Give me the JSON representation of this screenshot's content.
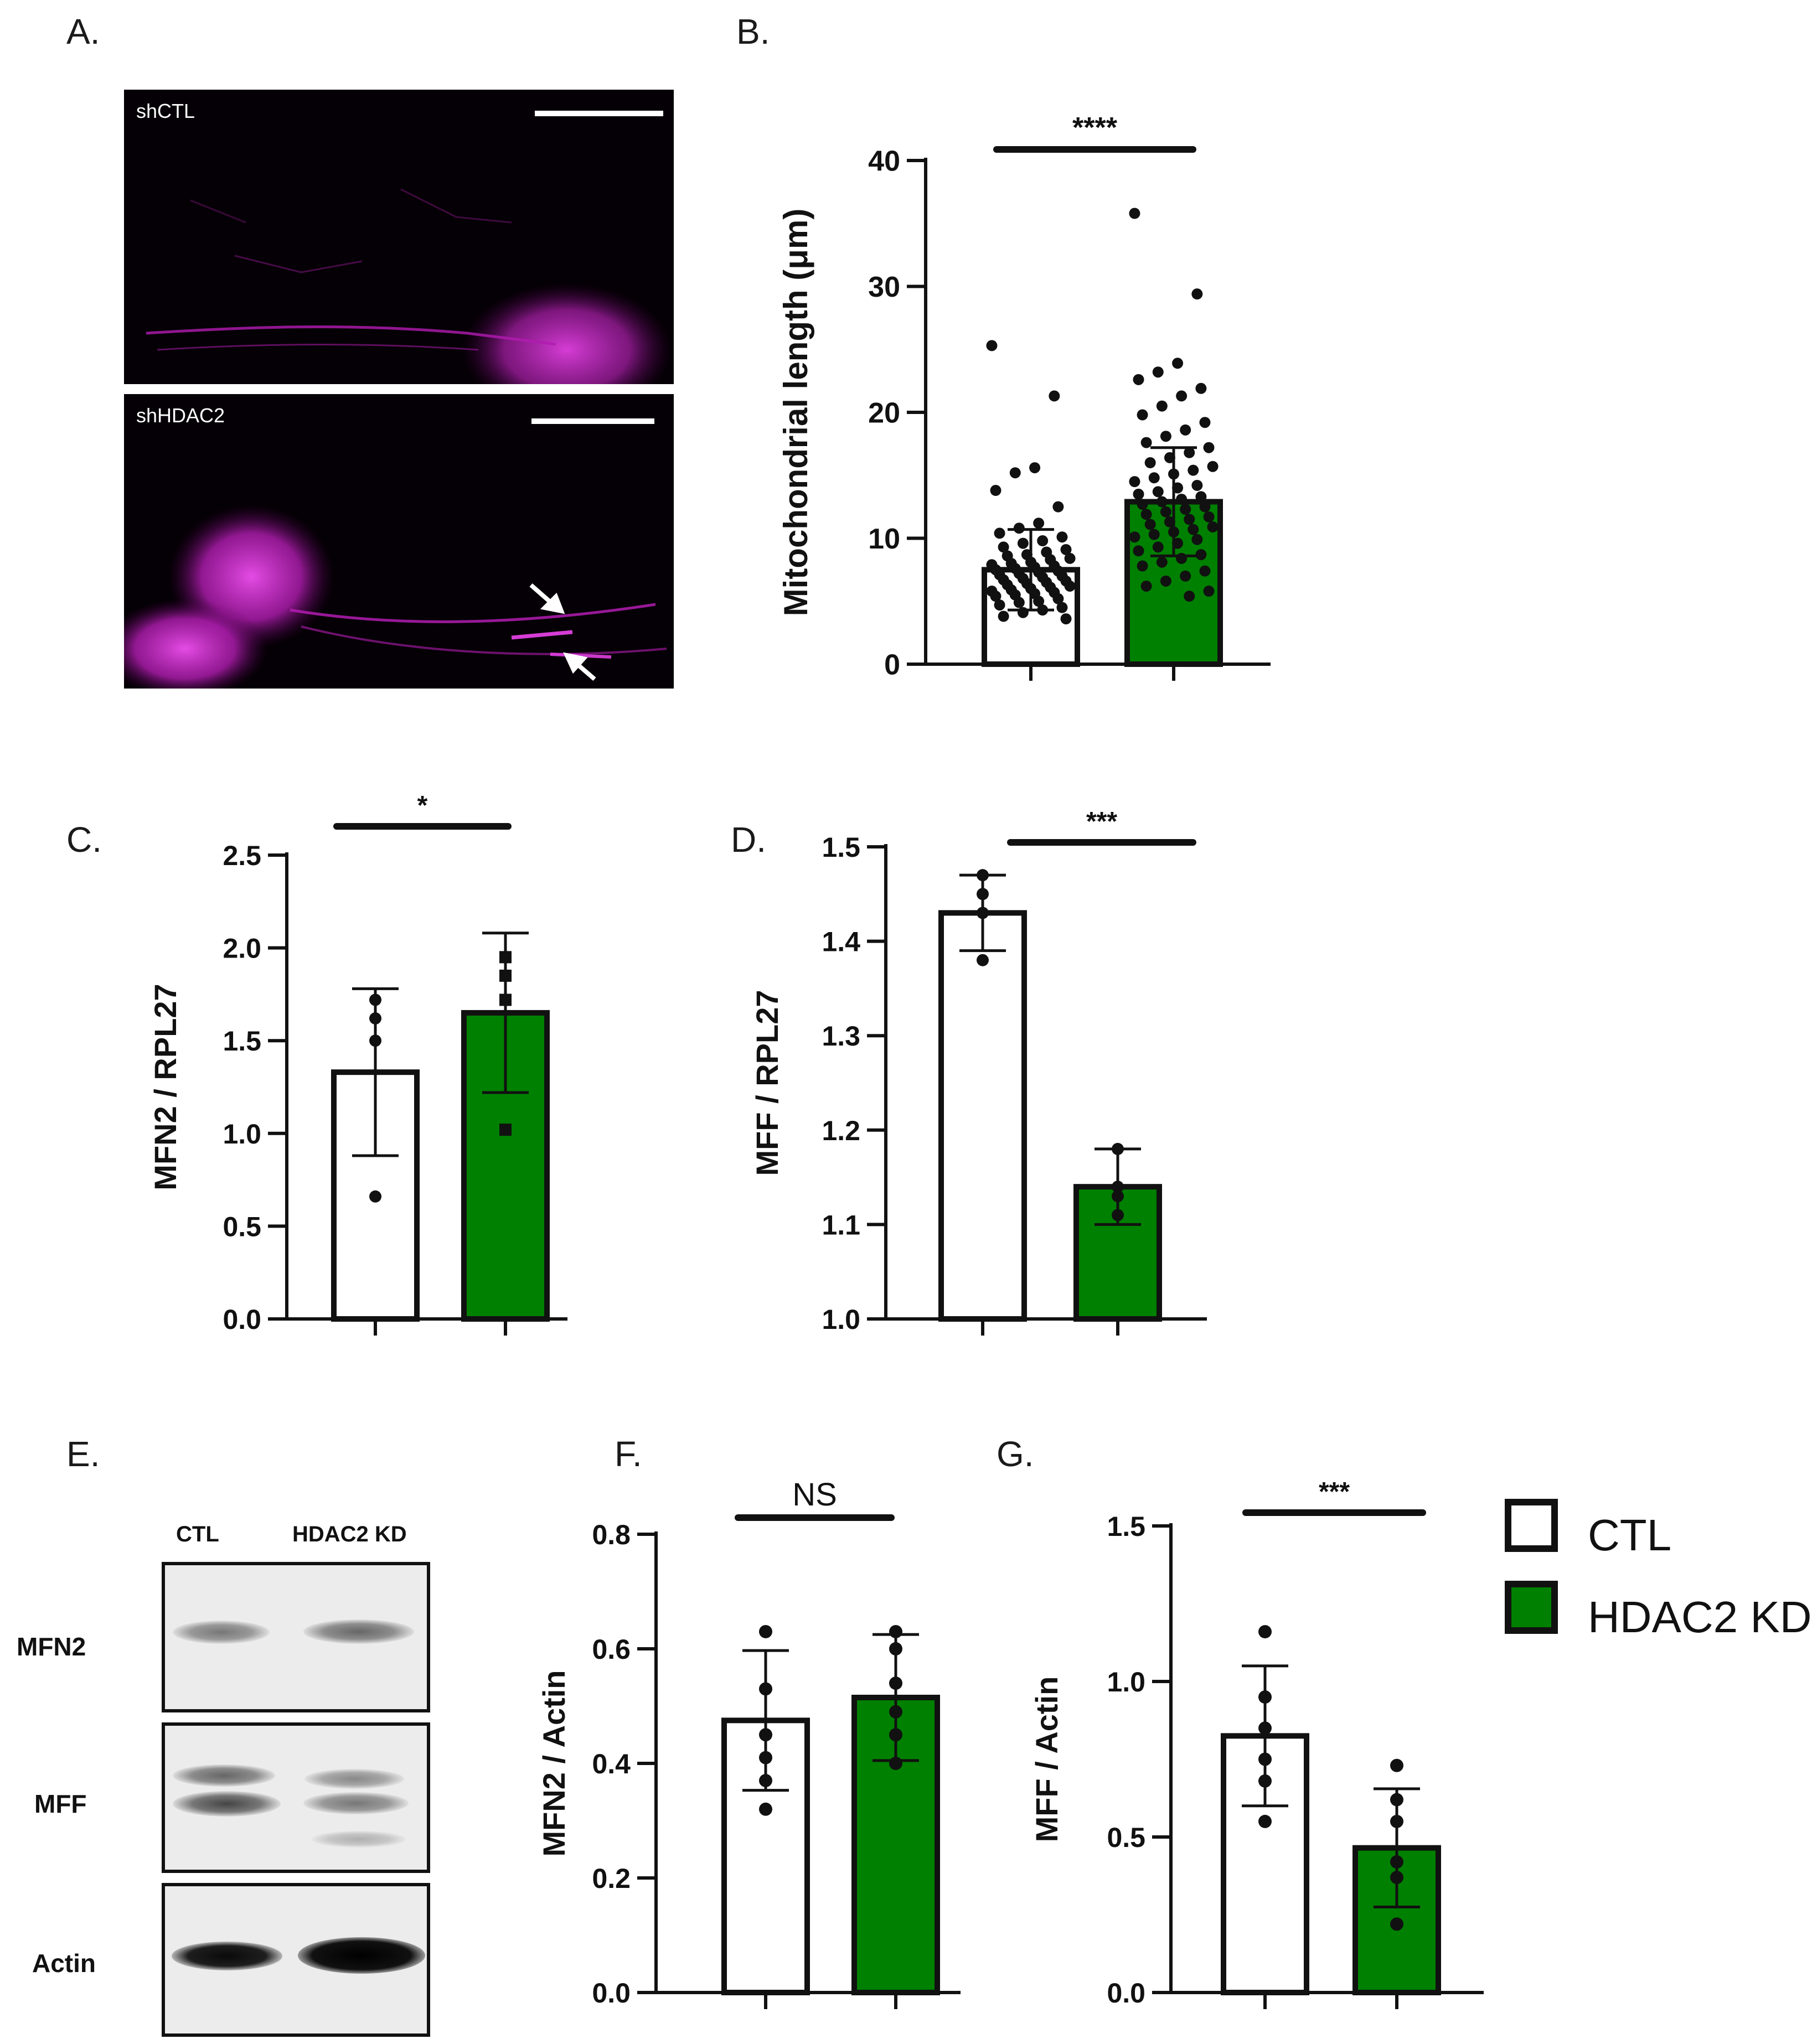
{
  "panels": {
    "A": "A.",
    "B": "B.",
    "C": "C.",
    "D": "D.",
    "E": "E.",
    "F": "F.",
    "G": "G."
  },
  "micrographs": [
    {
      "label": "shCTL"
    },
    {
      "label": "shHDAC2"
    }
  ],
  "blot": {
    "columns": [
      "CTL",
      "HDAC2 KD"
    ],
    "rows": [
      "MFN2",
      "MFF",
      "Actin"
    ]
  },
  "legend": [
    {
      "label": "CTL",
      "color": "#ffffff"
    },
    {
      "label": "HDAC2 KD",
      "color": "#008000"
    }
  ],
  "colors": {
    "ctl": "#ffffff",
    "kd": "#008000",
    "ink": "#111111",
    "micro_signal": "#c81ec8"
  },
  "chart_data": [
    {
      "id": "B",
      "type": "bar",
      "categories": [
        "CTL",
        "HDAC2 KD"
      ],
      "values": [
        7.5,
        12.9
      ],
      "errors": [
        3.2,
        4.3
      ],
      "ylabel": "Mitochondrial length (μm)",
      "ylim": [
        0,
        40
      ],
      "yticks": [
        0,
        10,
        20,
        30,
        40
      ],
      "significance": "****",
      "points": [
        [
          25.3,
          21.3,
          15.6,
          15.2,
          13.8,
          12.5,
          11.2,
          10.8,
          10.4,
          10.1,
          9.8,
          9.6,
          9.3,
          9.1,
          8.9,
          8.7,
          8.6,
          8.4,
          8.3,
          8.1,
          8.0,
          7.9,
          7.8,
          7.7,
          7.6,
          7.5,
          7.4,
          7.3,
          7.2,
          7.1,
          7.0,
          6.9,
          6.8,
          6.7,
          6.6,
          6.5,
          6.4,
          6.3,
          6.2,
          6.1,
          6.0,
          5.9,
          5.8,
          5.7,
          5.6,
          5.5,
          5.4,
          5.2,
          5.0,
          4.9,
          4.7,
          4.5,
          4.3,
          4.1,
          3.8,
          3.6
        ],
        [
          35.8,
          29.4,
          23.9,
          23.2,
          22.6,
          21.9,
          21.3,
          20.5,
          19.8,
          19.2,
          18.6,
          18.1,
          17.6,
          17.2,
          16.8,
          16.4,
          16.0,
          15.7,
          15.4,
          15.1,
          14.8,
          14.5,
          14.2,
          14.0,
          13.7,
          13.5,
          13.3,
          13.1,
          12.9,
          12.7,
          12.5,
          12.3,
          12.1,
          11.9,
          11.7,
          11.5,
          11.3,
          11.1,
          10.9,
          10.7,
          10.5,
          10.3,
          10.1,
          9.9,
          9.6,
          9.3,
          9.0,
          8.7,
          8.4,
          8.1,
          7.8,
          7.4,
          7.0,
          6.6,
          6.2,
          5.8,
          5.4
        ]
      ]
    },
    {
      "id": "C",
      "type": "bar",
      "categories": [
        "CTL",
        "HDAC2 KD"
      ],
      "values": [
        1.33,
        1.65
      ],
      "errors": [
        0.45,
        0.43
      ],
      "ylabel": "MFN2 / RPL27",
      "ylim": [
        0,
        2.5
      ],
      "yticks": [
        "0.0",
        "0.5",
        "1.0",
        "1.5",
        "2.0",
        "2.5"
      ],
      "significance": "*",
      "points": [
        [
          1.62,
          1.5,
          0.66,
          1.72
        ],
        [
          1.95,
          1.85,
          1.02,
          1.72
        ]
      ]
    },
    {
      "id": "D",
      "type": "bar",
      "categories": [
        "CTL",
        "HDAC2 KD"
      ],
      "values": [
        1.43,
        1.14
      ],
      "errors": [
        0.04,
        0.04
      ],
      "ylabel": "MFF / RPL27",
      "ylim": [
        1.0,
        1.5
      ],
      "yticks": [
        "1.0",
        "1.1",
        "1.2",
        "1.3",
        "1.4",
        "1.5"
      ],
      "significance": "***",
      "points": [
        [
          1.47,
          1.45,
          1.38,
          1.43
        ],
        [
          1.18,
          1.11,
          1.14,
          1.13
        ]
      ]
    },
    {
      "id": "F",
      "type": "bar",
      "categories": [
        "CTL",
        "HDAC2 KD"
      ],
      "values": [
        0.475,
        0.515
      ],
      "errors": [
        0.122,
        0.11
      ],
      "ylabel": "MFN2 / Actin",
      "ylim": [
        0,
        0.8
      ],
      "yticks": [
        "0.0",
        "0.2",
        "0.4",
        "0.6",
        "0.8"
      ],
      "significance": "NS",
      "points": [
        [
          0.63,
          0.53,
          0.45,
          0.41,
          0.37,
          0.32
        ],
        [
          0.63,
          0.6,
          0.54,
          0.49,
          0.45,
          0.4
        ]
      ]
    },
    {
      "id": "G",
      "type": "bar",
      "categories": [
        "CTL",
        "HDAC2 KD"
      ],
      "values": [
        0.825,
        0.465
      ],
      "errors": [
        0.225,
        0.19
      ],
      "ylabel": "MFF / Actin",
      "ylim": [
        0,
        1.5
      ],
      "yticks": [
        "0.0",
        "0.5",
        "1.0",
        "1.5"
      ],
      "significance": "***",
      "points": [
        [
          1.16,
          0.95,
          0.85,
          0.75,
          0.68,
          0.55
        ],
        [
          0.73,
          0.62,
          0.55,
          0.42,
          0.37,
          0.22
        ]
      ]
    }
  ]
}
